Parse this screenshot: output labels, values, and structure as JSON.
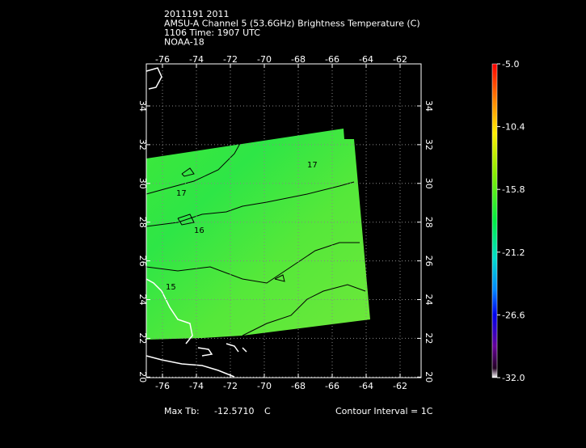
{
  "header": {
    "lines": [
      "2011191 2011",
      "AMSU-A Channel 5 (53.6GHz) Brightness Temperature (C)",
      "1106 Time: 1907 UTC",
      "NOAA-18"
    ]
  },
  "map": {
    "lon_labels": [
      "-76",
      "-74",
      "-72",
      "-70",
      "-68",
      "-66",
      "-64",
      "-62"
    ],
    "lat_labels": [
      "34",
      "32",
      "30",
      "28",
      "26",
      "24",
      "22",
      "20"
    ],
    "contour_labels": [
      "17",
      "17",
      "16",
      "15"
    ]
  },
  "colorbar": {
    "labels": [
      "-5.0",
      "-10.4",
      "-15.8",
      "-21.2",
      "-26.6",
      "-32.0"
    ]
  },
  "footer": {
    "max_label": "Max Tb:",
    "max_value": "-12.5710",
    "max_unit": "C",
    "interval": "Contour Interval = 1C"
  }
}
